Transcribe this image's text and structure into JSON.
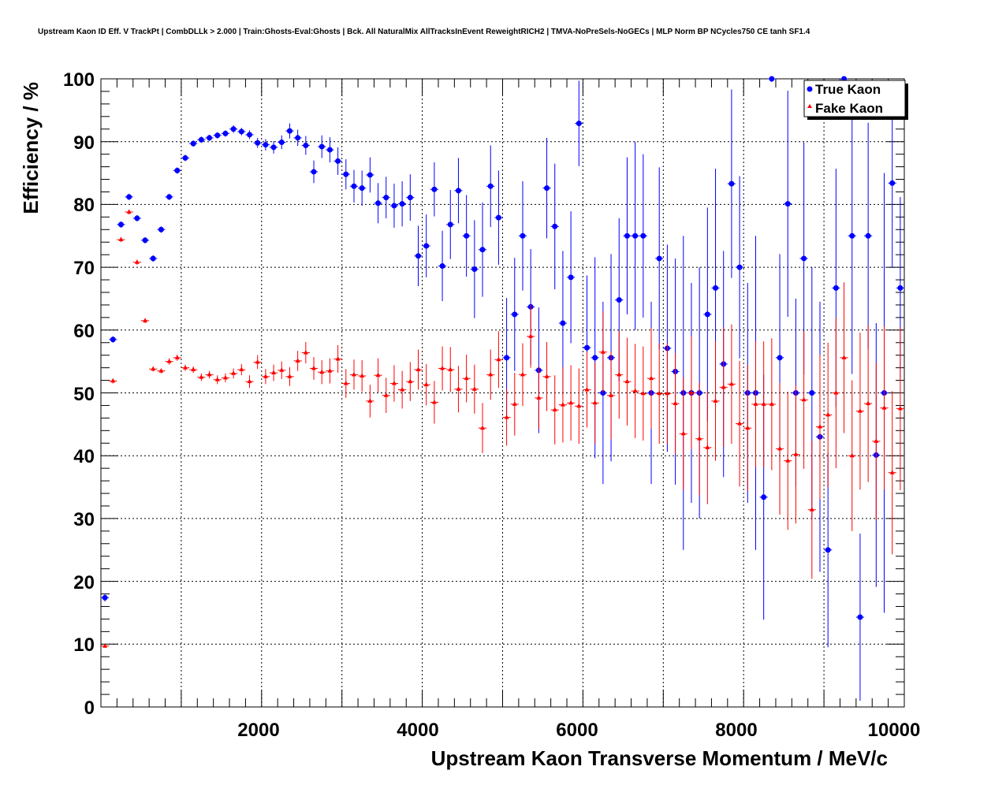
{
  "chart_data": {
    "type": "scatter",
    "title": "Upstream Kaon ID Eff. V TrackPt | CombDLLk > 2.000 | Train:Ghosts-Eval:Ghosts | Bck. All NaturalMix AllTracksInEvent ReweightRICH2 | TMVA-NoPreSels-NoGECs | MLP Norm BP NCycles750 CE tanh SF1.4",
    "xlabel": "Upstream Kaon Transverse Momentum / MeV/c",
    "ylabel": "Efficiency / %",
    "xlim": [
      0,
      10000
    ],
    "ylim": [
      0,
      100
    ],
    "x_ticks": [
      "2000",
      "4000",
      "6000",
      "8000",
      "10000"
    ],
    "y_ticks": [
      "0",
      "10",
      "20",
      "30",
      "40",
      "50",
      "60",
      "70",
      "80",
      "90",
      "100"
    ],
    "grid": true,
    "legend_position": "top-right",
    "bin_half_width": 50,
    "series": [
      {
        "name": "True Kaon",
        "color": "#0000ff",
        "marker": "circle",
        "points": [
          [
            50,
            17.4,
            0.6
          ],
          [
            150,
            58.5,
            0.5
          ],
          [
            250,
            76.8,
            0.5
          ],
          [
            350,
            81.2,
            0.5
          ],
          [
            450,
            77.8,
            0.5
          ],
          [
            550,
            74.3,
            0.5
          ],
          [
            650,
            71.4,
            0.5
          ],
          [
            750,
            76.0,
            0.5
          ],
          [
            850,
            81.2,
            0.5
          ],
          [
            950,
            85.4,
            0.5
          ],
          [
            1050,
            87.4,
            0.5
          ],
          [
            1150,
            89.7,
            0.5
          ],
          [
            1250,
            90.3,
            0.5
          ],
          [
            1350,
            90.6,
            0.5
          ],
          [
            1450,
            91.0,
            0.5
          ],
          [
            1550,
            91.3,
            0.5
          ],
          [
            1650,
            92.0,
            0.6
          ],
          [
            1750,
            91.6,
            0.6
          ],
          [
            1850,
            91.1,
            0.7
          ],
          [
            1950,
            89.8,
            0.8
          ],
          [
            2050,
            89.5,
            0.9
          ],
          [
            2150,
            89.1,
            1.0
          ],
          [
            2250,
            89.9,
            1.1
          ],
          [
            2350,
            91.7,
            1.2
          ],
          [
            2450,
            90.6,
            1.3
          ],
          [
            2550,
            89.4,
            1.5
          ],
          [
            2650,
            85.2,
            1.8
          ],
          [
            2750,
            89.2,
            1.8
          ],
          [
            2850,
            88.7,
            2.0
          ],
          [
            2950,
            86.9,
            2.2
          ],
          [
            3050,
            84.8,
            2.4
          ],
          [
            3150,
            82.9,
            2.6
          ],
          [
            3250,
            82.6,
            2.8
          ],
          [
            3350,
            84.7,
            2.8
          ],
          [
            3450,
            80.2,
            3.2
          ],
          [
            3550,
            81.1,
            3.3
          ],
          [
            3650,
            79.8,
            3.5
          ],
          [
            3750,
            80.1,
            3.6
          ],
          [
            3850,
            81.1,
            3.7
          ],
          [
            3950,
            71.8,
            4.8
          ],
          [
            4050,
            73.4,
            5.0
          ],
          [
            4150,
            82.4,
            4.3
          ],
          [
            4250,
            70.2,
            5.6
          ],
          [
            4350,
            76.8,
            5.5
          ],
          [
            4450,
            82.2,
            5.2
          ],
          [
            4550,
            75.0,
            6.5
          ],
          [
            4650,
            69.7,
            7.8
          ],
          [
            4750,
            72.8,
            7.5
          ],
          [
            4850,
            82.9,
            6.5
          ],
          [
            4950,
            77.9,
            7.5
          ],
          [
            5050,
            55.6,
            9.5
          ],
          [
            5150,
            62.5,
            9.0
          ],
          [
            5250,
            75.0,
            8.7
          ],
          [
            5350,
            63.7,
            9.2
          ],
          [
            5450,
            53.6,
            10.0
          ],
          [
            5550,
            82.6,
            8.0
          ],
          [
            5650,
            76.5,
            10.0
          ],
          [
            5750,
            61.1,
            11.5
          ],
          [
            5850,
            68.4,
            10.5
          ],
          [
            5950,
            92.9,
            6.8
          ],
          [
            6050,
            57.2,
            11.5
          ],
          [
            6150,
            55.6,
            16.0
          ],
          [
            6250,
            50.0,
            14.5
          ],
          [
            6350,
            55.6,
            16.5
          ],
          [
            6450,
            64.8,
            13.0
          ],
          [
            6550,
            75.0,
            12.5
          ],
          [
            6650,
            75.0,
            15.0
          ],
          [
            6750,
            75.0,
            13.0
          ],
          [
            6850,
            50.0,
            14.5
          ],
          [
            6950,
            71.4,
            14.5
          ],
          [
            7050,
            57.1,
            16.5
          ],
          [
            7150,
            53.4,
            18.0
          ],
          [
            7250,
            50.0,
            25.0
          ],
          [
            7350,
            50.0,
            17.5
          ],
          [
            7450,
            50.0,
            20.0
          ],
          [
            7550,
            62.5,
            17.0
          ],
          [
            7650,
            66.7,
            19.0
          ],
          [
            7750,
            54.6,
            18.0
          ],
          [
            7850,
            83.3,
            15.0
          ],
          [
            7950,
            70.0,
            14.5
          ],
          [
            8050,
            50.0,
            17.5
          ],
          [
            8150,
            50.0,
            25.0
          ],
          [
            8250,
            33.4,
            19.5
          ],
          [
            8350,
            100.0,
            0.5
          ],
          [
            8450,
            55.6,
            16.5
          ],
          [
            8550,
            80.1,
            18.0
          ],
          [
            8650,
            50.0,
            15.0
          ],
          [
            8750,
            71.4,
            18.5
          ],
          [
            8850,
            50.0,
            20.0
          ],
          [
            8950,
            43.0,
            21.5
          ],
          [
            9050,
            25.0,
            15.5
          ],
          [
            9150,
            66.7,
            19.0
          ],
          [
            9250,
            100.0,
            0.5
          ],
          [
            9350,
            75.0,
            22.0
          ],
          [
            9450,
            14.3,
            13.3
          ],
          [
            9550,
            75.0,
            18.0
          ],
          [
            9650,
            40.1,
            21.0
          ],
          [
            9750,
            50.0,
            35.0
          ],
          [
            9850,
            83.4,
            13.5
          ],
          [
            9950,
            66.7,
            14.5
          ]
        ]
      },
      {
        "name": "Fake Kaon",
        "color": "#ff0000",
        "marker": "triangle",
        "points": [
          [
            50,
            9.7,
            0.3
          ],
          [
            150,
            51.9,
            0.4
          ],
          [
            250,
            74.4,
            0.4
          ],
          [
            350,
            78.8,
            0.4
          ],
          [
            450,
            70.8,
            0.4
          ],
          [
            550,
            61.5,
            0.4
          ],
          [
            650,
            53.8,
            0.4
          ],
          [
            750,
            53.5,
            0.4
          ],
          [
            850,
            55.0,
            0.5
          ],
          [
            950,
            55.6,
            0.5
          ],
          [
            1050,
            54.0,
            0.5
          ],
          [
            1150,
            53.7,
            0.5
          ],
          [
            1250,
            52.5,
            0.6
          ],
          [
            1350,
            52.9,
            0.6
          ],
          [
            1450,
            52.1,
            0.7
          ],
          [
            1550,
            52.4,
            0.7
          ],
          [
            1650,
            53.1,
            0.8
          ],
          [
            1750,
            53.7,
            0.9
          ],
          [
            1850,
            51.8,
            1.0
          ],
          [
            1950,
            54.9,
            1.1
          ],
          [
            2050,
            52.6,
            1.2
          ],
          [
            2150,
            53.2,
            1.3
          ],
          [
            2250,
            53.6,
            1.4
          ],
          [
            2350,
            52.6,
            1.5
          ],
          [
            2450,
            55.1,
            1.6
          ],
          [
            2550,
            56.4,
            1.7
          ],
          [
            2650,
            53.9,
            1.8
          ],
          [
            2750,
            53.3,
            1.9
          ],
          [
            2850,
            53.5,
            2.0
          ],
          [
            2950,
            55.4,
            2.2
          ],
          [
            3050,
            51.5,
            2.3
          ],
          [
            3150,
            52.9,
            2.4
          ],
          [
            3250,
            52.7,
            2.5
          ],
          [
            3350,
            48.7,
            2.6
          ],
          [
            3450,
            52.8,
            2.7
          ],
          [
            3550,
            49.6,
            2.8
          ],
          [
            3650,
            51.5,
            2.9
          ],
          [
            3750,
            50.5,
            3.0
          ],
          [
            3850,
            51.8,
            3.1
          ],
          [
            3950,
            53.7,
            3.2
          ],
          [
            4050,
            51.3,
            3.3
          ],
          [
            4150,
            48.5,
            3.4
          ],
          [
            4250,
            53.9,
            3.5
          ],
          [
            4350,
            53.7,
            3.6
          ],
          [
            4450,
            50.6,
            3.7
          ],
          [
            4550,
            52.3,
            3.8
          ],
          [
            4650,
            50.6,
            3.9
          ],
          [
            4750,
            44.4,
            4.0
          ],
          [
            4850,
            52.9,
            4.0
          ],
          [
            4950,
            55.3,
            4.5
          ],
          [
            5050,
            46.1,
            4.5
          ],
          [
            5150,
            48.2,
            5.0
          ],
          [
            5250,
            52.9,
            5.0
          ],
          [
            5350,
            59.0,
            5.0
          ],
          [
            5450,
            49.2,
            5.0
          ],
          [
            5550,
            52.6,
            5.5
          ],
          [
            5650,
            47.3,
            5.5
          ],
          [
            5750,
            48.1,
            6.0
          ],
          [
            5850,
            48.4,
            6.0
          ],
          [
            5950,
            47.9,
            6.0
          ],
          [
            6050,
            50.5,
            6.0
          ],
          [
            6150,
            48.4,
            6.5
          ],
          [
            6250,
            56.5,
            6.5
          ],
          [
            6350,
            49.6,
            7.0
          ],
          [
            6450,
            52.9,
            7.0
          ],
          [
            6550,
            51.8,
            7.0
          ],
          [
            6650,
            50.3,
            7.5
          ],
          [
            6750,
            49.9,
            7.5
          ],
          [
            6850,
            52.3,
            8.0
          ],
          [
            6950,
            49.9,
            8.0
          ],
          [
            7050,
            49.9,
            8.0
          ],
          [
            7150,
            48.3,
            8.0
          ],
          [
            7250,
            43.5,
            9.0
          ],
          [
            7350,
            50.0,
            9.0
          ],
          [
            7450,
            42.7,
            9.0
          ],
          [
            7550,
            41.3,
            9.0
          ],
          [
            7650,
            48.7,
            9.5
          ],
          [
            7750,
            50.9,
            9.5
          ],
          [
            7850,
            51.4,
            9.5
          ],
          [
            7950,
            45.1,
            10.0
          ],
          [
            8050,
            44.4,
            10.0
          ],
          [
            8150,
            48.2,
            10.0
          ],
          [
            8250,
            48.2,
            10.0
          ],
          [
            8350,
            48.2,
            10.5
          ],
          [
            8450,
            41.1,
            10.5
          ],
          [
            8550,
            39.2,
            11.0
          ],
          [
            8650,
            40.2,
            11.0
          ],
          [
            8750,
            48.9,
            11.0
          ],
          [
            8850,
            31.4,
            11.0
          ],
          [
            8950,
            44.6,
            11.5
          ],
          [
            9050,
            46.5,
            11.5
          ],
          [
            9150,
            50.0,
            12.0
          ],
          [
            9250,
            55.6,
            12.0
          ],
          [
            9350,
            40.0,
            12.0
          ],
          [
            9450,
            47.1,
            12.5
          ],
          [
            9550,
            48.3,
            12.5
          ],
          [
            9650,
            42.3,
            12.5
          ],
          [
            9750,
            47.6,
            13.0
          ],
          [
            9850,
            37.3,
            13.0
          ],
          [
            9950,
            47.5,
            13.0
          ]
        ]
      }
    ]
  }
}
